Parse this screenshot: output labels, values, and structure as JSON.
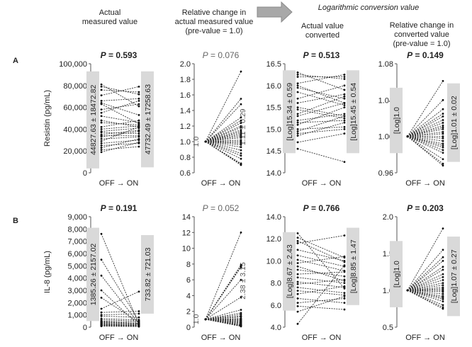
{
  "headers": {
    "col1": "Actual\nmeasured value",
    "col2": "Relative change in\nactual measured value\n(pre-value = 1.0)",
    "log_title": "Logarithmic conversion value",
    "col3": "Actual value\nconverted",
    "col4": "Relative change in\nconverted value\n(pre-value = 1.0)"
  },
  "row_labels": {
    "a": "A",
    "b": "B"
  },
  "colors": {
    "ink": "#222222",
    "bar": "#d9d9d9",
    "arrow": "#a8a8a8",
    "line": "#333333"
  },
  "chart_data": [
    {
      "type": "line",
      "id": "A1",
      "row": 0,
      "col": 0,
      "p_label": "P = 0.593",
      "p_bold": true,
      "ylabel": "Resistin (pg/mL)",
      "xlabel": "OFF → ON",
      "ylim": [
        0,
        100000
      ],
      "yticks": [
        "0",
        "20,000",
        "40,000",
        "60,000",
        "80,000",
        "100,000"
      ],
      "ytick_values": [
        0,
        20000,
        40000,
        60000,
        80000,
        100000
      ],
      "bar_left": {
        "low": 4000,
        "high": 93000,
        "text": "44827.63 ± 18472.82"
      },
      "bar_right": {
        "low": 5000,
        "high": 93000,
        "text": "47732.49 ± 17258.63"
      },
      "pairs": [
        [
          81000,
          61000
        ],
        [
          79000,
          72000
        ],
        [
          76000,
          74000
        ],
        [
          71000,
          79000
        ],
        [
          66000,
          68000
        ],
        [
          64000,
          53000
        ],
        [
          63000,
          45000
        ],
        [
          58000,
          63000
        ],
        [
          55000,
          66000
        ],
        [
          52000,
          46000
        ],
        [
          48000,
          42000
        ],
        [
          46000,
          44000
        ],
        [
          42000,
          48000
        ],
        [
          40000,
          43000
        ],
        [
          38000,
          41000
        ],
        [
          37000,
          36000
        ],
        [
          35000,
          39000
        ],
        [
          34000,
          34000
        ],
        [
          33000,
          38000
        ],
        [
          31000,
          33000
        ],
        [
          29000,
          42000
        ],
        [
          27000,
          30000
        ],
        [
          25000,
          27000
        ],
        [
          23000,
          31000
        ],
        [
          21000,
          24000
        ],
        [
          19000,
          28000
        ]
      ]
    },
    {
      "type": "line",
      "id": "A2",
      "row": 0,
      "col": 1,
      "p_label": "P = 0.076",
      "p_bold": false,
      "ylabel": "",
      "xlabel": "OFF → ON",
      "ylim": [
        0.6,
        2.0
      ],
      "yticks": [
        "0.6",
        "0.8",
        "1.0",
        "1.2",
        "1.4",
        "1.6",
        "1.8",
        "2.0"
      ],
      "ytick_values": [
        0.6,
        0.8,
        1.0,
        1.2,
        1.4,
        1.6,
        1.8,
        2.0
      ],
      "left_text": "1.0",
      "right_text": "1.11 ± 0.29",
      "pre_value": 1.0,
      "posts": [
        1.9,
        1.55,
        1.48,
        1.31,
        1.27,
        1.24,
        1.2,
        1.18,
        1.15,
        1.13,
        1.11,
        1.09,
        1.07,
        1.05,
        1.02,
        1.0,
        0.98,
        0.96,
        0.93,
        0.89,
        0.85,
        0.82,
        0.78,
        0.72,
        0.71,
        0.7
      ]
    },
    {
      "type": "line",
      "id": "A3",
      "row": 0,
      "col": 2,
      "p_label": "P = 0.513",
      "p_bold": true,
      "ylabel": "",
      "xlabel": "OFF → ON",
      "ylim": [
        14.0,
        16.5
      ],
      "yticks": [
        "14.0",
        "14.5",
        "15.0",
        "15.5",
        "16.0",
        "16.5"
      ],
      "ytick_values": [
        14.0,
        14.5,
        15.0,
        15.5,
        16.0,
        16.5
      ],
      "bar_left": {
        "low": 14.45,
        "high": 16.35,
        "text": "[Log]15.34 ± 0.59"
      },
      "bar_right": {
        "low": 14.45,
        "high": 16.35,
        "text": "[Log]15.45 ± 0.54"
      },
      "pairs": [
        [
          16.3,
          15.9
        ],
        [
          16.25,
          16.15
        ],
        [
          16.2,
          16.2
        ],
        [
          16.05,
          16.25
        ],
        [
          16.0,
          15.6
        ],
        [
          15.95,
          15.7
        ],
        [
          15.85,
          15.55
        ],
        [
          15.7,
          16.0
        ],
        [
          15.6,
          15.8
        ],
        [
          15.5,
          15.3
        ],
        [
          15.45,
          15.25
        ],
        [
          15.35,
          15.75
        ],
        [
          15.3,
          15.6
        ],
        [
          15.2,
          15.35
        ],
        [
          15.15,
          15.2
        ],
        [
          15.1,
          15.5
        ],
        [
          15.0,
          15.05
        ],
        [
          14.95,
          15.3
        ],
        [
          14.9,
          15.0
        ],
        [
          14.85,
          15.15
        ],
        [
          14.7,
          14.9
        ],
        [
          14.55,
          14.25
        ]
      ]
    },
    {
      "type": "line",
      "id": "A4",
      "row": 0,
      "col": 3,
      "p_label": "P = 0.149",
      "p_bold": true,
      "ylabel": "",
      "xlabel": "OFF → ON",
      "ylim": [
        0.96,
        1.08
      ],
      "yticks": [
        "0.96",
        "1.00",
        "1.04",
        "1.08"
      ],
      "ytick_values": [
        0.96,
        1.0,
        1.04,
        1.08
      ],
      "left_text": "[Log]1.0",
      "right_text": "[Log]1.01 ± 0.02",
      "pre_value": 1.0,
      "posts": [
        1.061,
        1.04,
        1.03,
        1.025,
        1.022,
        1.018,
        1.015,
        1.012,
        1.01,
        1.008,
        1.005,
        1.003,
        1.0,
        0.998,
        0.995,
        0.992,
        0.99,
        0.988,
        0.985,
        0.982,
        0.975,
        0.97,
        0.968
      ]
    },
    {
      "type": "line",
      "id": "B1",
      "row": 1,
      "col": 0,
      "p_label": "P = 0.191",
      "p_bold": true,
      "ylabel": "IL-8 (pg/mL)",
      "xlabel": "OFF → ON",
      "ylim": [
        0,
        9000
      ],
      "yticks": [
        "0",
        "1,000",
        "2,000",
        "3,000",
        "4,000",
        "5,000",
        "6,000",
        "7,000",
        "8,000",
        "9,000"
      ],
      "ytick_values": [
        0,
        1000,
        2000,
        3000,
        4000,
        5000,
        6000,
        7000,
        8000,
        9000
      ],
      "bar_left": {
        "low": 500,
        "high": 8100,
        "text": "1385.26 ± 2157.02"
      },
      "bar_right": {
        "low": 1100,
        "high": 7500,
        "text": "733.82 ± 721.03"
      },
      "pairs": [
        [
          7600,
          200
        ],
        [
          5500,
          500
        ],
        [
          4200,
          300
        ],
        [
          3000,
          150
        ],
        [
          2400,
          400
        ],
        [
          1500,
          2900
        ],
        [
          1200,
          1300
        ],
        [
          1000,
          1100
        ],
        [
          900,
          800
        ],
        [
          700,
          600
        ],
        [
          600,
          500
        ],
        [
          500,
          400
        ],
        [
          450,
          300
        ],
        [
          400,
          250
        ],
        [
          350,
          300
        ],
        [
          300,
          200
        ],
        [
          250,
          150
        ],
        [
          220,
          180
        ],
        [
          200,
          120
        ],
        [
          180,
          100
        ],
        [
          150,
          90
        ],
        [
          120,
          80
        ],
        [
          100,
          60
        ],
        [
          80,
          50
        ]
      ]
    },
    {
      "type": "line",
      "id": "B2",
      "row": 1,
      "col": 1,
      "p_label": "P = 0.052",
      "p_bold": false,
      "ylabel": "",
      "xlabel": "OFF → ON",
      "ylim": [
        0,
        14
      ],
      "yticks": [
        "0",
        "2",
        "4",
        "6",
        "8",
        "10",
        "12",
        "14"
      ],
      "ytick_values": [
        0,
        2,
        4,
        6,
        8,
        10,
        12,
        14
      ],
      "left_text": "1.0",
      "right_text": "2.38 ± 3.15",
      "pre_value": 1.0,
      "posts": [
        12.0,
        7.9,
        7.7,
        7.6,
        6.0,
        3.8,
        2.2,
        1.8,
        1.6,
        1.4,
        1.3,
        1.1,
        1.0,
        0.9,
        0.8,
        0.7,
        0.6,
        0.5,
        0.4,
        0.3,
        0.25,
        0.2,
        0.15,
        0.1
      ]
    },
    {
      "type": "line",
      "id": "B3",
      "row": 1,
      "col": 2,
      "p_label": "P = 0.766",
      "p_bold": true,
      "ylabel": "",
      "xlabel": "OFF → ON",
      "ylim": [
        4.0,
        14.0
      ],
      "yticks": [
        "4.0",
        "6.0",
        "8.0",
        "10.0",
        "12.0",
        "14.0"
      ],
      "ytick_values": [
        4.0,
        6.0,
        8.0,
        10.0,
        12.0,
        14.0
      ],
      "bar_left": {
        "low": 5.5,
        "high": 12.6,
        "text": "[Log]8.67 ± 2.43"
      },
      "bar_right": {
        "low": 6.0,
        "high": 13.0,
        "text": "[Log]8.85 ± 1.47"
      },
      "pairs": [
        [
          12.5,
          7.5
        ],
        [
          12.1,
          10.3
        ],
        [
          11.8,
          9.9
        ],
        [
          11.6,
          12.3
        ],
        [
          11.0,
          10.0
        ],
        [
          10.5,
          9.5
        ],
        [
          10.1,
          9.1
        ],
        [
          9.8,
          10.4
        ],
        [
          9.5,
          8.2
        ],
        [
          9.2,
          8.6
        ],
        [
          8.8,
          9.0
        ],
        [
          8.5,
          8.0
        ],
        [
          8.1,
          7.6
        ],
        [
          7.9,
          8.3
        ],
        [
          7.6,
          7.1
        ],
        [
          7.3,
          6.9
        ],
        [
          7.0,
          7.7
        ],
        [
          6.6,
          6.2
        ],
        [
          6.2,
          6.6
        ],
        [
          5.9,
          5.6
        ],
        [
          5.4,
          6.8
        ],
        [
          4.3,
          9.6
        ]
      ]
    },
    {
      "type": "line",
      "id": "B4",
      "row": 1,
      "col": 3,
      "p_label": "P = 0.203",
      "p_bold": true,
      "ylabel": "",
      "xlabel": "OFF → ON",
      "ylim": [
        0.5,
        2.0
      ],
      "yticks": [
        "0.5",
        "1.0",
        "1.5",
        "2.0"
      ],
      "ytick_values": [
        0.5,
        1.0,
        1.5,
        2.0
      ],
      "left_text": "[Log]1.0",
      "right_text": "[Log]1.07 ± 0.27",
      "pre_value": 1.0,
      "posts": [
        1.84,
        1.55,
        1.45,
        1.4,
        1.32,
        1.28,
        1.22,
        1.18,
        1.14,
        1.1,
        1.07,
        1.04,
        1.02,
        1.0,
        0.98,
        0.95,
        0.92,
        0.9,
        0.88,
        0.85,
        0.8,
        0.77,
        0.75
      ]
    }
  ]
}
